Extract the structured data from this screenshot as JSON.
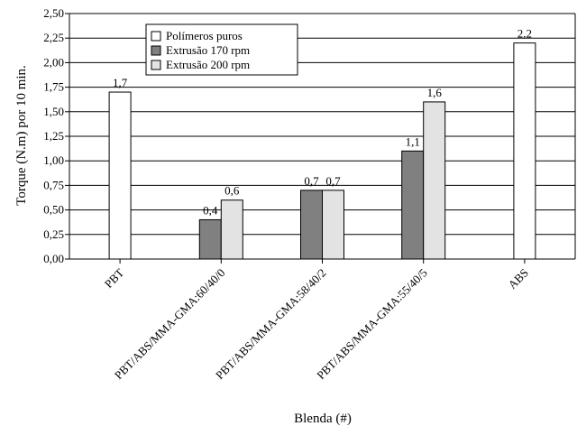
{
  "chart_data": {
    "type": "bar",
    "title": "",
    "xlabel": "Blenda (#)",
    "ylabel": "Torque (N.m) por 10 min.",
    "ylim": [
      0,
      2.5
    ],
    "yticks": [
      "0,00",
      "0,25",
      "0,50",
      "0,75",
      "1,00",
      "1,25",
      "1,50",
      "1,75",
      "2,00",
      "2,25",
      "2,50"
    ],
    "grid": true,
    "legend_position": "top-left",
    "categories": [
      "PBT",
      "PBT/ABS/MMA-GMA:60/40/0",
      "PBT/ABS/MMA-GMA:58/40/2",
      "PBT/ABS/MMA-GMA:55/40/5",
      "ABS"
    ],
    "series": [
      {
        "name": "Polímeros puros",
        "color": "#ffffff",
        "values": [
          1.7,
          null,
          null,
          null,
          2.2
        ],
        "labels": [
          "1,7",
          "",
          "",
          "",
          "2,2"
        ]
      },
      {
        "name": "Extrusão 170 rpm",
        "color": "#808080",
        "values": [
          null,
          0.4,
          0.7,
          1.1,
          null
        ],
        "labels": [
          "",
          "0,4",
          "0,7",
          "1,1",
          ""
        ]
      },
      {
        "name": "Extrusão 200 rpm",
        "color": "#e3e3e3",
        "values": [
          null,
          0.6,
          0.7,
          1.6,
          null
        ],
        "labels": [
          "",
          "0,6",
          "0,7",
          "1,6",
          ""
        ]
      }
    ]
  }
}
